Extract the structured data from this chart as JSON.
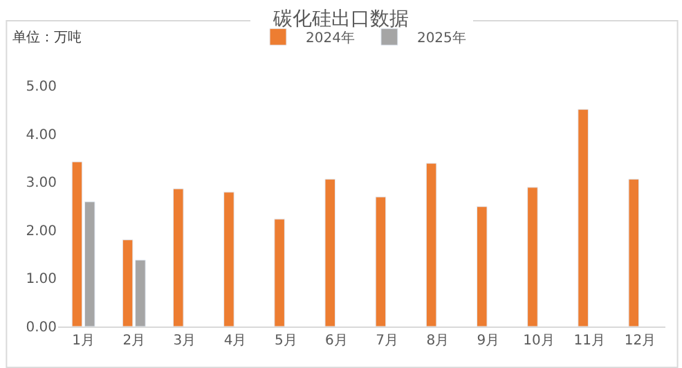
{
  "chart_data": {
    "type": "bar",
    "title": "碳化硅出口数据",
    "annotations": [
      "单位：万吨"
    ],
    "categories": [
      "1月",
      "2月",
      "3月",
      "4月",
      "5月",
      "6月",
      "7月",
      "8月",
      "9月",
      "10月",
      "11月",
      "12月"
    ],
    "series": [
      {
        "name": "2024年",
        "color": "#ed7d31",
        "values": [
          3.42,
          1.8,
          2.86,
          2.79,
          2.23,
          3.06,
          2.69,
          3.39,
          2.49,
          2.89,
          4.51,
          3.06
        ]
      },
      {
        "name": "2025年",
        "color": "#a5a5a5",
        "values": [
          2.59,
          1.38,
          null,
          null,
          null,
          null,
          null,
          null,
          null,
          null,
          null,
          null
        ]
      }
    ],
    "ylim": [
      0,
      5
    ],
    "yticks": [
      {
        "value": 0,
        "label": "0.00"
      },
      {
        "value": 1,
        "label": "1.00"
      },
      {
        "value": 2,
        "label": "2.00"
      },
      {
        "value": 3,
        "label": "3.00"
      },
      {
        "value": 4,
        "label": "4.00"
      },
      {
        "value": 5,
        "label": "5.00"
      }
    ],
    "grid": false,
    "legend": "top"
  }
}
